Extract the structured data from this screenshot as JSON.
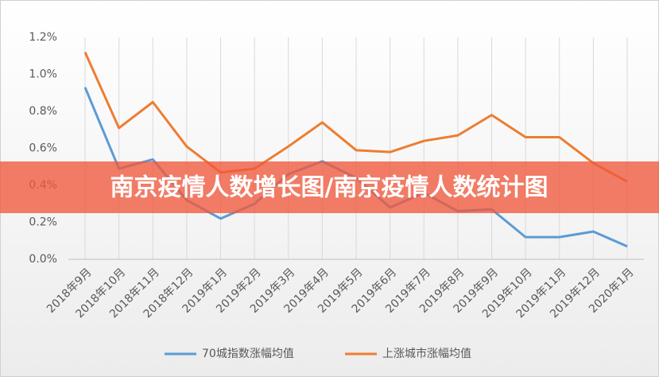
{
  "chart_data": {
    "type": "line",
    "categories": [
      "2018年9月",
      "2018年10月",
      "2018年11月",
      "2018年12月",
      "2019年1月",
      "2019年2月",
      "2019年3月",
      "2019年4月",
      "2019年5月",
      "2019年6月",
      "2019年7月",
      "2019年8月",
      "2019年9月",
      "2019年10月",
      "2019年11月",
      "2019年12月",
      "2020年1月"
    ],
    "series": [
      {
        "name": "70城指数涨幅均值",
        "color": "#5b9bd5",
        "values": [
          0.93,
          0.49,
          0.54,
          0.32,
          0.22,
          0.3,
          0.46,
          0.53,
          0.44,
          0.28,
          0.36,
          0.26,
          0.27,
          0.12,
          0.12,
          0.15,
          0.07
        ]
      },
      {
        "name": "上涨城市涨幅均值",
        "color": "#ed7d31",
        "values": [
          1.12,
          0.71,
          0.85,
          0.61,
          0.47,
          0.49,
          0.61,
          0.74,
          0.59,
          0.58,
          0.64,
          0.67,
          0.78,
          0.66,
          0.66,
          0.52,
          0.42
        ]
      }
    ],
    "ylim": [
      0,
      1.2
    ],
    "yticks": [
      {
        "value": 0,
        "label": "0.0%"
      },
      {
        "value": 0.2,
        "label": "0.2%"
      },
      {
        "value": 0.4,
        "label": "0.4%"
      },
      {
        "value": 0.6,
        "label": "0.6%"
      },
      {
        "value": 0.8,
        "label": "0.8%"
      },
      {
        "value": 1.0,
        "label": "1.0%"
      },
      {
        "value": 1.2,
        "label": "1.2%"
      }
    ],
    "grid": "x",
    "legend": "bottom"
  },
  "banner": {
    "text": "南京疫情人数增长图/南京疫情人数统计图"
  }
}
